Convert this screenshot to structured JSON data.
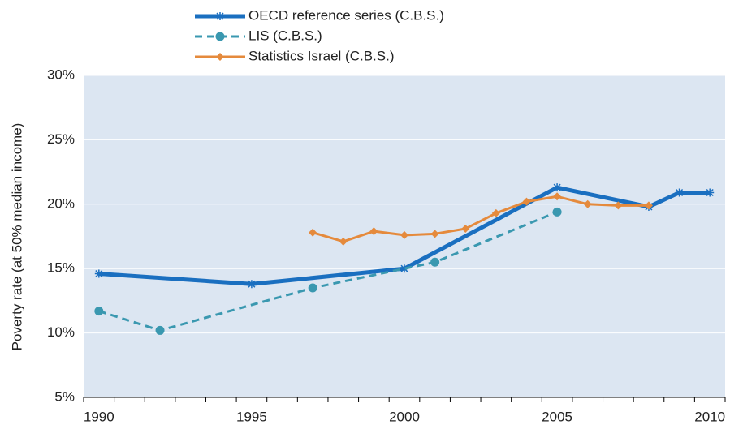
{
  "chart_data": {
    "type": "line",
    "y_label": "Poverty rate (at 50% median income)",
    "xlim": [
      1989.5,
      2010.5
    ],
    "xticks": [
      1990,
      1995,
      2000,
      2005,
      2010
    ],
    "xminorticks": [
      1989.5,
      1990.5,
      1991.5,
      1992.5,
      1993.5,
      1994.5,
      1995.5,
      1996.5,
      1997.5,
      1998.5,
      1999.5,
      2000.5,
      2001.5,
      2002.5,
      2003.5,
      2004.5,
      2005.5,
      2006.5,
      2007.5,
      2008.5,
      2009.5,
      2010.5
    ],
    "ylim": [
      5,
      30
    ],
    "yticks": [
      {
        "value": 5,
        "label": "5%"
      },
      {
        "value": 10,
        "label": "10%"
      },
      {
        "value": 15,
        "label": "15%"
      },
      {
        "value": 20,
        "label": "20%"
      },
      {
        "value": 25,
        "label": "25%"
      },
      {
        "value": 30,
        "label": "30%"
      }
    ],
    "grid": true,
    "legend": "top",
    "series": [
      {
        "name": "OECD reference series  (C.B.S.)",
        "color": "#1a6fc0",
        "marker": "asterisk",
        "dashed": false,
        "width": 5,
        "x": [
          1990,
          1995,
          2000,
          2005,
          2008,
          2009,
          2010
        ],
        "values": [
          14.6,
          13.8,
          15.0,
          21.3,
          19.8,
          20.9,
          20.9
        ]
      },
      {
        "name": "LIS (C.B.S.)",
        "color": "#3a98b0",
        "marker": "circle",
        "dashed": true,
        "width": 3,
        "x": [
          1990,
          1992,
          1997,
          2001,
          2005
        ],
        "values": [
          11.7,
          10.2,
          13.5,
          15.5,
          19.4
        ]
      },
      {
        "name": "Statistics Israel (C.B.S.)",
        "color": "#e58a3c",
        "marker": "diamond",
        "dashed": false,
        "width": 3,
        "x": [
          1997,
          1998,
          1999,
          2000,
          2001,
          2002,
          2003,
          2004,
          2005,
          2006,
          2007,
          2008
        ],
        "values": [
          17.8,
          17.1,
          17.9,
          17.6,
          17.7,
          18.1,
          19.3,
          20.2,
          20.6,
          20.0,
          19.9,
          19.9
        ]
      }
    ]
  }
}
